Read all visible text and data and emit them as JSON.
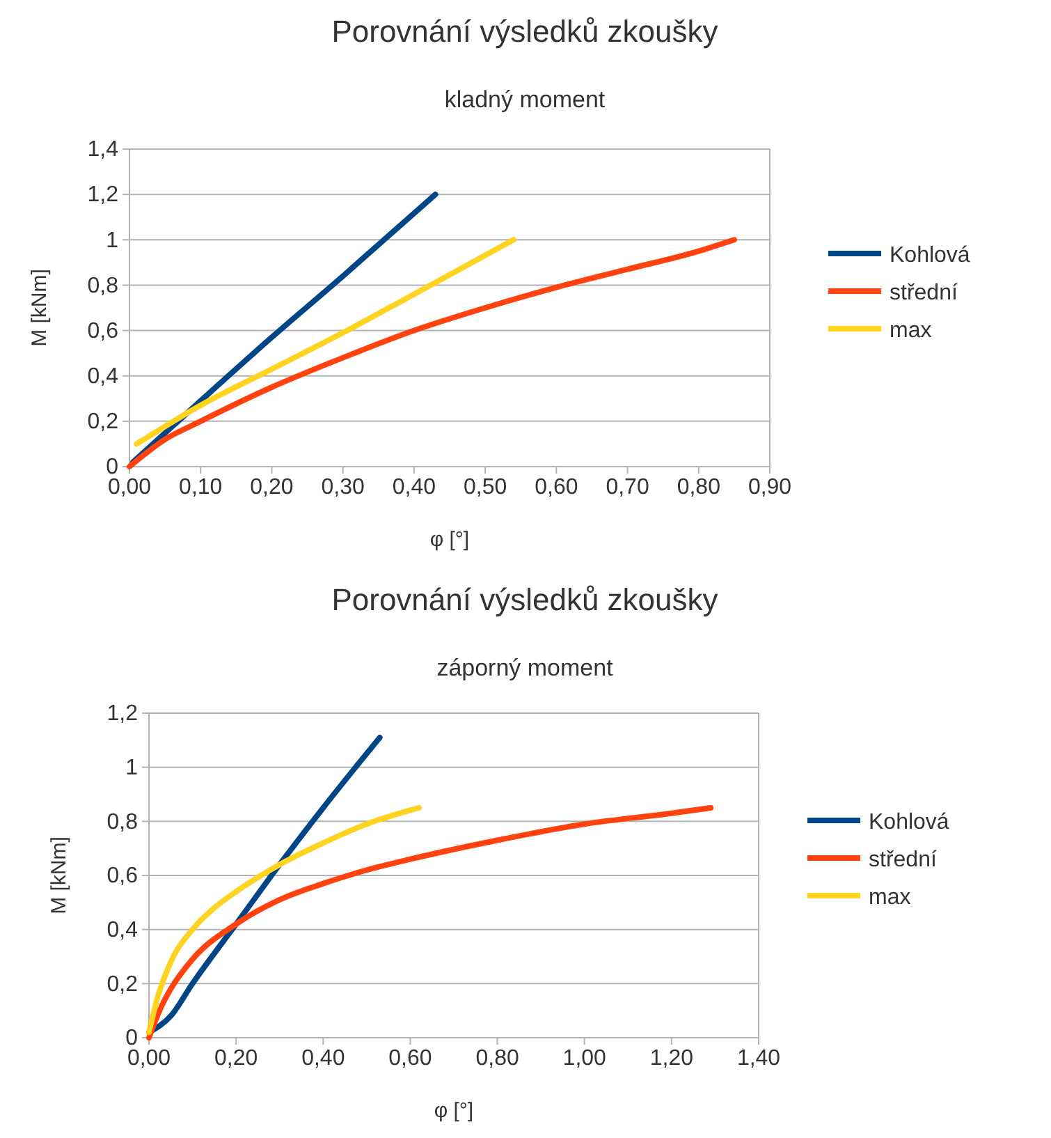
{
  "chart_data": [
    {
      "type": "line",
      "title": "Porovnání výsledků zkoušky",
      "subtitle": "kladný moment",
      "xlabel": "φ [°]",
      "ylabel": "M [kNm]",
      "grid": "y",
      "legend": "right",
      "marker": "none",
      "line_style": "solid",
      "xlim": [
        0,
        0.9
      ],
      "xticks": [
        {
          "value": 0,
          "label": "0,00"
        },
        {
          "value": 0.1,
          "label": "0,10"
        },
        {
          "value": 0.2,
          "label": "0,20"
        },
        {
          "value": 0.3,
          "label": "0,30"
        },
        {
          "value": 0.4,
          "label": "0,40"
        },
        {
          "value": 0.5,
          "label": "0,50"
        },
        {
          "value": 0.6,
          "label": "0,60"
        },
        {
          "value": 0.7,
          "label": "0,70"
        },
        {
          "value": 0.8,
          "label": "0,80"
        },
        {
          "value": 0.9,
          "label": "0,90"
        }
      ],
      "ylim": [
        0,
        1.4
      ],
      "yticks": [
        {
          "value": 0,
          "label": "0"
        },
        {
          "value": 0.2,
          "label": "0,2"
        },
        {
          "value": 0.4,
          "label": "0,4"
        },
        {
          "value": 0.6,
          "label": "0,6"
        },
        {
          "value": 0.8,
          "label": "0,8"
        },
        {
          "value": 1,
          "label": "1"
        },
        {
          "value": 1.2,
          "label": "1,2"
        },
        {
          "value": 1.4,
          "label": "1,4"
        }
      ],
      "series": [
        {
          "name": "Kohlová",
          "color": "#004586",
          "x": [
            0.005,
            0.1,
            0.2,
            0.3,
            0.43
          ],
          "values": [
            0.02,
            0.29,
            0.57,
            0.84,
            1.2
          ]
        },
        {
          "name": "střední",
          "color": "#ff420e",
          "x": [
            0,
            0.05,
            0.1,
            0.2,
            0.3,
            0.4,
            0.5,
            0.6,
            0.7,
            0.8,
            0.85
          ],
          "values": [
            0,
            0.12,
            0.2,
            0.35,
            0.48,
            0.6,
            0.7,
            0.79,
            0.87,
            0.95,
            1.0
          ]
        },
        {
          "name": "max",
          "color": "#ffd320",
          "x": [
            0.01,
            0.1,
            0.2,
            0.3,
            0.4,
            0.54
          ],
          "values": [
            0.1,
            0.27,
            0.43,
            0.59,
            0.76,
            1.0
          ]
        }
      ]
    },
    {
      "type": "line",
      "title": "Porovnání výsledků zkoušky",
      "subtitle": "záporný moment",
      "xlabel": "φ [°]",
      "ylabel": "M [kNm]",
      "grid": "y",
      "legend": "right",
      "marker": "none",
      "line_style": "solid",
      "xlim": [
        0,
        1.4
      ],
      "xticks": [
        {
          "value": 0,
          "label": "0,00"
        },
        {
          "value": 0.2,
          "label": "0,20"
        },
        {
          "value": 0.4,
          "label": "0,40"
        },
        {
          "value": 0.6,
          "label": "0,60"
        },
        {
          "value": 0.8,
          "label": "0,80"
        },
        {
          "value": 1.0,
          "label": "1,00"
        },
        {
          "value": 1.2,
          "label": "1,20"
        },
        {
          "value": 1.4,
          "label": "1,40"
        }
      ],
      "ylim": [
        0,
        1.2
      ],
      "yticks": [
        {
          "value": 0,
          "label": "0"
        },
        {
          "value": 0.2,
          "label": "0,2"
        },
        {
          "value": 0.4,
          "label": "0,4"
        },
        {
          "value": 0.6,
          "label": "0,6"
        },
        {
          "value": 0.8,
          "label": "0,8"
        },
        {
          "value": 1,
          "label": "1"
        },
        {
          "value": 1.2,
          "label": "1,2"
        }
      ],
      "series": [
        {
          "name": "Kohlová",
          "color": "#004586",
          "x": [
            0,
            0.05,
            0.1,
            0.2,
            0.3,
            0.4,
            0.53
          ],
          "values": [
            0.02,
            0.08,
            0.2,
            0.42,
            0.64,
            0.85,
            1.11
          ]
        },
        {
          "name": "střední",
          "color": "#ff420e",
          "x": [
            0,
            0.03,
            0.05,
            0.1,
            0.2,
            0.3,
            0.4,
            0.5,
            0.6,
            0.8,
            1.0,
            1.2,
            1.29
          ],
          "values": [
            0,
            0.12,
            0.18,
            0.29,
            0.42,
            0.51,
            0.57,
            0.62,
            0.66,
            0.73,
            0.79,
            0.83,
            0.85
          ]
        },
        {
          "name": "max",
          "color": "#ffd320",
          "x": [
            0,
            0.02,
            0.05,
            0.1,
            0.15,
            0.2,
            0.3,
            0.4,
            0.5,
            0.62
          ],
          "values": [
            0.02,
            0.15,
            0.28,
            0.4,
            0.48,
            0.54,
            0.64,
            0.72,
            0.79,
            0.85
          ]
        }
      ]
    }
  ]
}
